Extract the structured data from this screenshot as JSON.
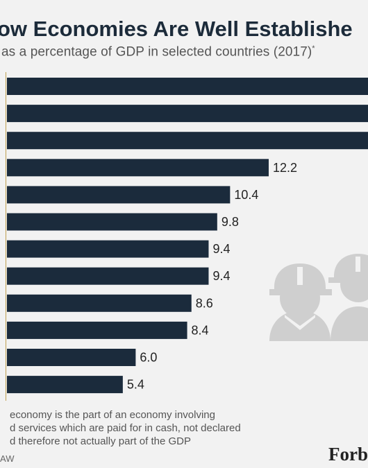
{
  "header": {
    "title": "ow Economies Are Well Establishe",
    "subtitle": "as a percentage of GDP in selected countries (2017)",
    "subtitle_mark": "*"
  },
  "chart_data": {
    "type": "bar",
    "orientation": "horizontal",
    "categories": [
      "",
      "",
      "",
      "",
      "",
      "",
      "",
      "",
      "",
      "",
      "",
      ""
    ],
    "values": [
      null,
      null,
      null,
      12.2,
      10.4,
      9.8,
      9.4,
      9.4,
      8.6,
      8.4,
      6.0,
      5.4
    ],
    "value_labels": [
      "",
      "",
      "",
      "12.2",
      "10.4",
      "9.8",
      "9.4",
      "9.4",
      "8.6",
      "8.4",
      "6.0",
      "5.4"
    ],
    "title": "ow Economies Are Well Establishe",
    "subtitle": "as a percentage of GDP in selected countries (2017)*",
    "grid": false,
    "bar_color": "#1b2b3c"
  },
  "footnote": [
    "economy is the part of an economy involving",
    "d services which are paid for in cash, not declared",
    "d therefore not actually part of the GDP"
  ],
  "source": "AW",
  "brand": "Forb",
  "icon": "construction-workers-icon",
  "colors": {
    "bar": "#1b2b3c",
    "axis": "#c0a050",
    "background": "#f2f2f2",
    "icon": "#cfcfcf"
  }
}
